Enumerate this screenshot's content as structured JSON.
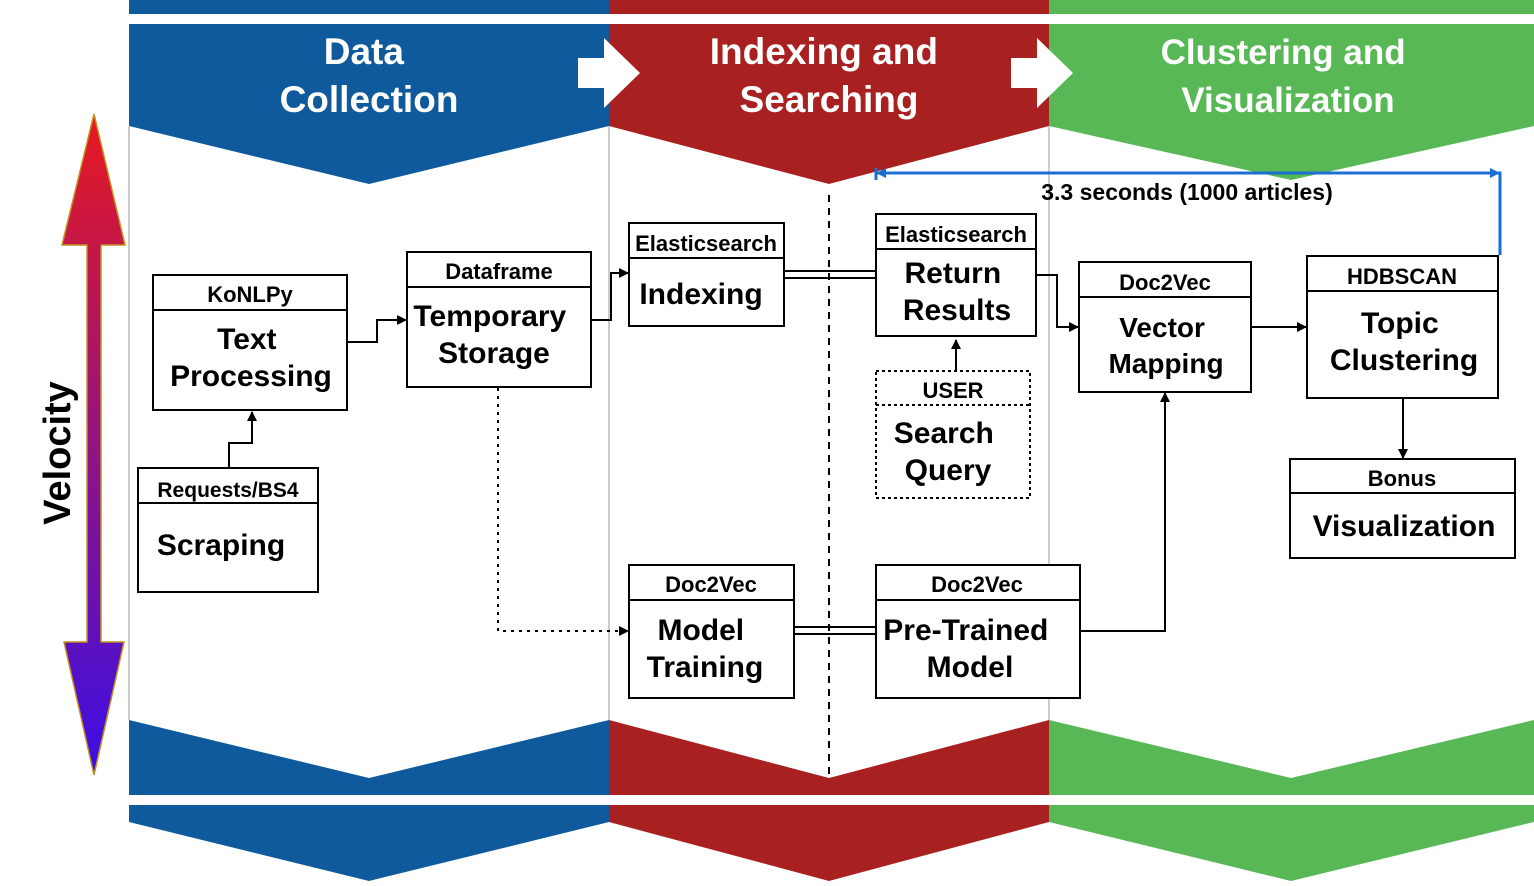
{
  "phases": {
    "data_collection": [
      "Data",
      "Collection"
    ],
    "indexing_searching": [
      "Indexing and",
      "Searching"
    ],
    "clustering_visualization": [
      "Clustering and",
      "Visualization"
    ]
  },
  "velocity_label": "Velocity",
  "timing_label": "3.3 seconds (1000 articles)",
  "nodes": {
    "scraping": {
      "tool": "Requests/BS4",
      "label": [
        "Scraping"
      ]
    },
    "text_processing": {
      "tool": "KoNLPy",
      "label": [
        "Text",
        "Processing"
      ]
    },
    "temporary_storage": {
      "tool": "Dataframe",
      "label": [
        "Temporary",
        "Storage"
      ]
    },
    "indexing": {
      "tool": "Elasticsearch",
      "label": [
        "Indexing"
      ]
    },
    "model_training": {
      "tool": "Doc2Vec",
      "label": [
        "Model",
        "Training"
      ]
    },
    "return_results": {
      "tool": "Elasticsearch",
      "label": [
        "Return",
        "Results"
      ]
    },
    "search_query": {
      "tool": "USER",
      "label": [
        "Search",
        "Query"
      ]
    },
    "pretrained_model": {
      "tool": "Doc2Vec",
      "label": [
        "Pre-Trained",
        "Model"
      ]
    },
    "vector_mapping": {
      "tool": "Doc2Vec",
      "label": [
        "Vector",
        "Mapping"
      ]
    },
    "topic_clustering": {
      "tool": "HDBSCAN",
      "label": [
        "Topic",
        "Clustering"
      ]
    },
    "visualization": {
      "tool": "Bonus",
      "label": [
        "Visualization"
      ]
    }
  },
  "colors": {
    "blue": "#0f5a9c",
    "red": "#a82020",
    "green": "#57b855",
    "timing_bracket": "#1a6fd0",
    "velocity_top": "#e8191f",
    "velocity_bottom": "#3a0ee6"
  }
}
